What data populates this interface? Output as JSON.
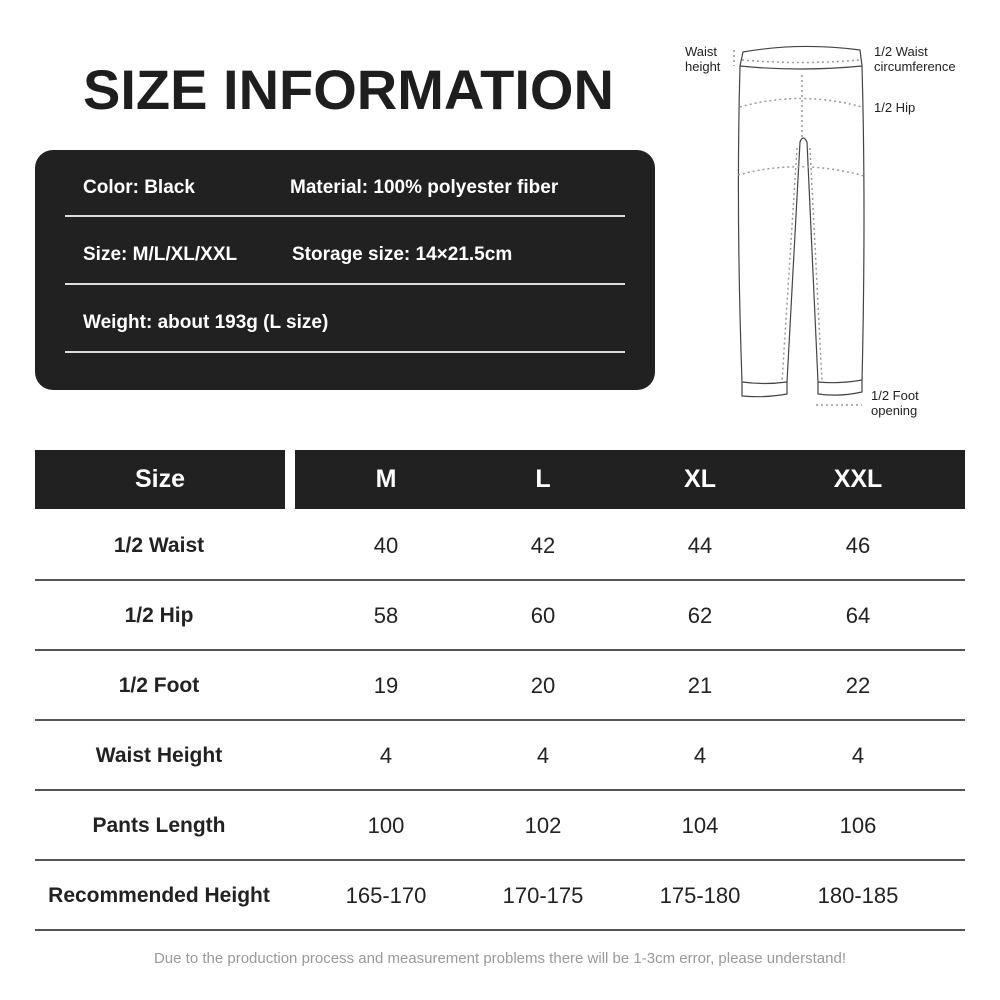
{
  "title": "SIZE INFORMATION",
  "specs": {
    "color": "Color: Black",
    "material": "Material: 100% polyester fiber",
    "size": "Size: M/L/XL/XXL",
    "storage": "Storage size: 14×21.5cm",
    "weight": "Weight: about 193g (L size)"
  },
  "diagram": {
    "waist_height": [
      "Waist",
      "height"
    ],
    "half_waist": [
      "1/2 Waist",
      "circumference"
    ],
    "half_hip": "1/2 Hip",
    "foot": [
      "1/2 Foot",
      "opening"
    ]
  },
  "table": {
    "header": {
      "label": "Size",
      "sizes": [
        "M",
        "L",
        "XL",
        "XXL"
      ]
    },
    "rows": [
      {
        "label": "1/2 Waist",
        "values": [
          "40",
          "42",
          "44",
          "46"
        ]
      },
      {
        "label": "1/2 Hip",
        "values": [
          "58",
          "60",
          "62",
          "64"
        ]
      },
      {
        "label": "1/2 Foot",
        "values": [
          "19",
          "20",
          "21",
          "22"
        ]
      },
      {
        "label": "Waist Height",
        "values": [
          "4",
          "4",
          "4",
          "4"
        ]
      },
      {
        "label": "Pants Length",
        "values": [
          "100",
          "102",
          "104",
          "106"
        ]
      },
      {
        "label": "Recommended Height",
        "values": [
          "165-170",
          "170-175",
          "175-180",
          "180-185"
        ]
      }
    ]
  },
  "footer": "Due to the production process and measurement problems there will be 1-3cm error, please understand!",
  "colors": {
    "dark": "#212121",
    "muted": "#999999"
  }
}
